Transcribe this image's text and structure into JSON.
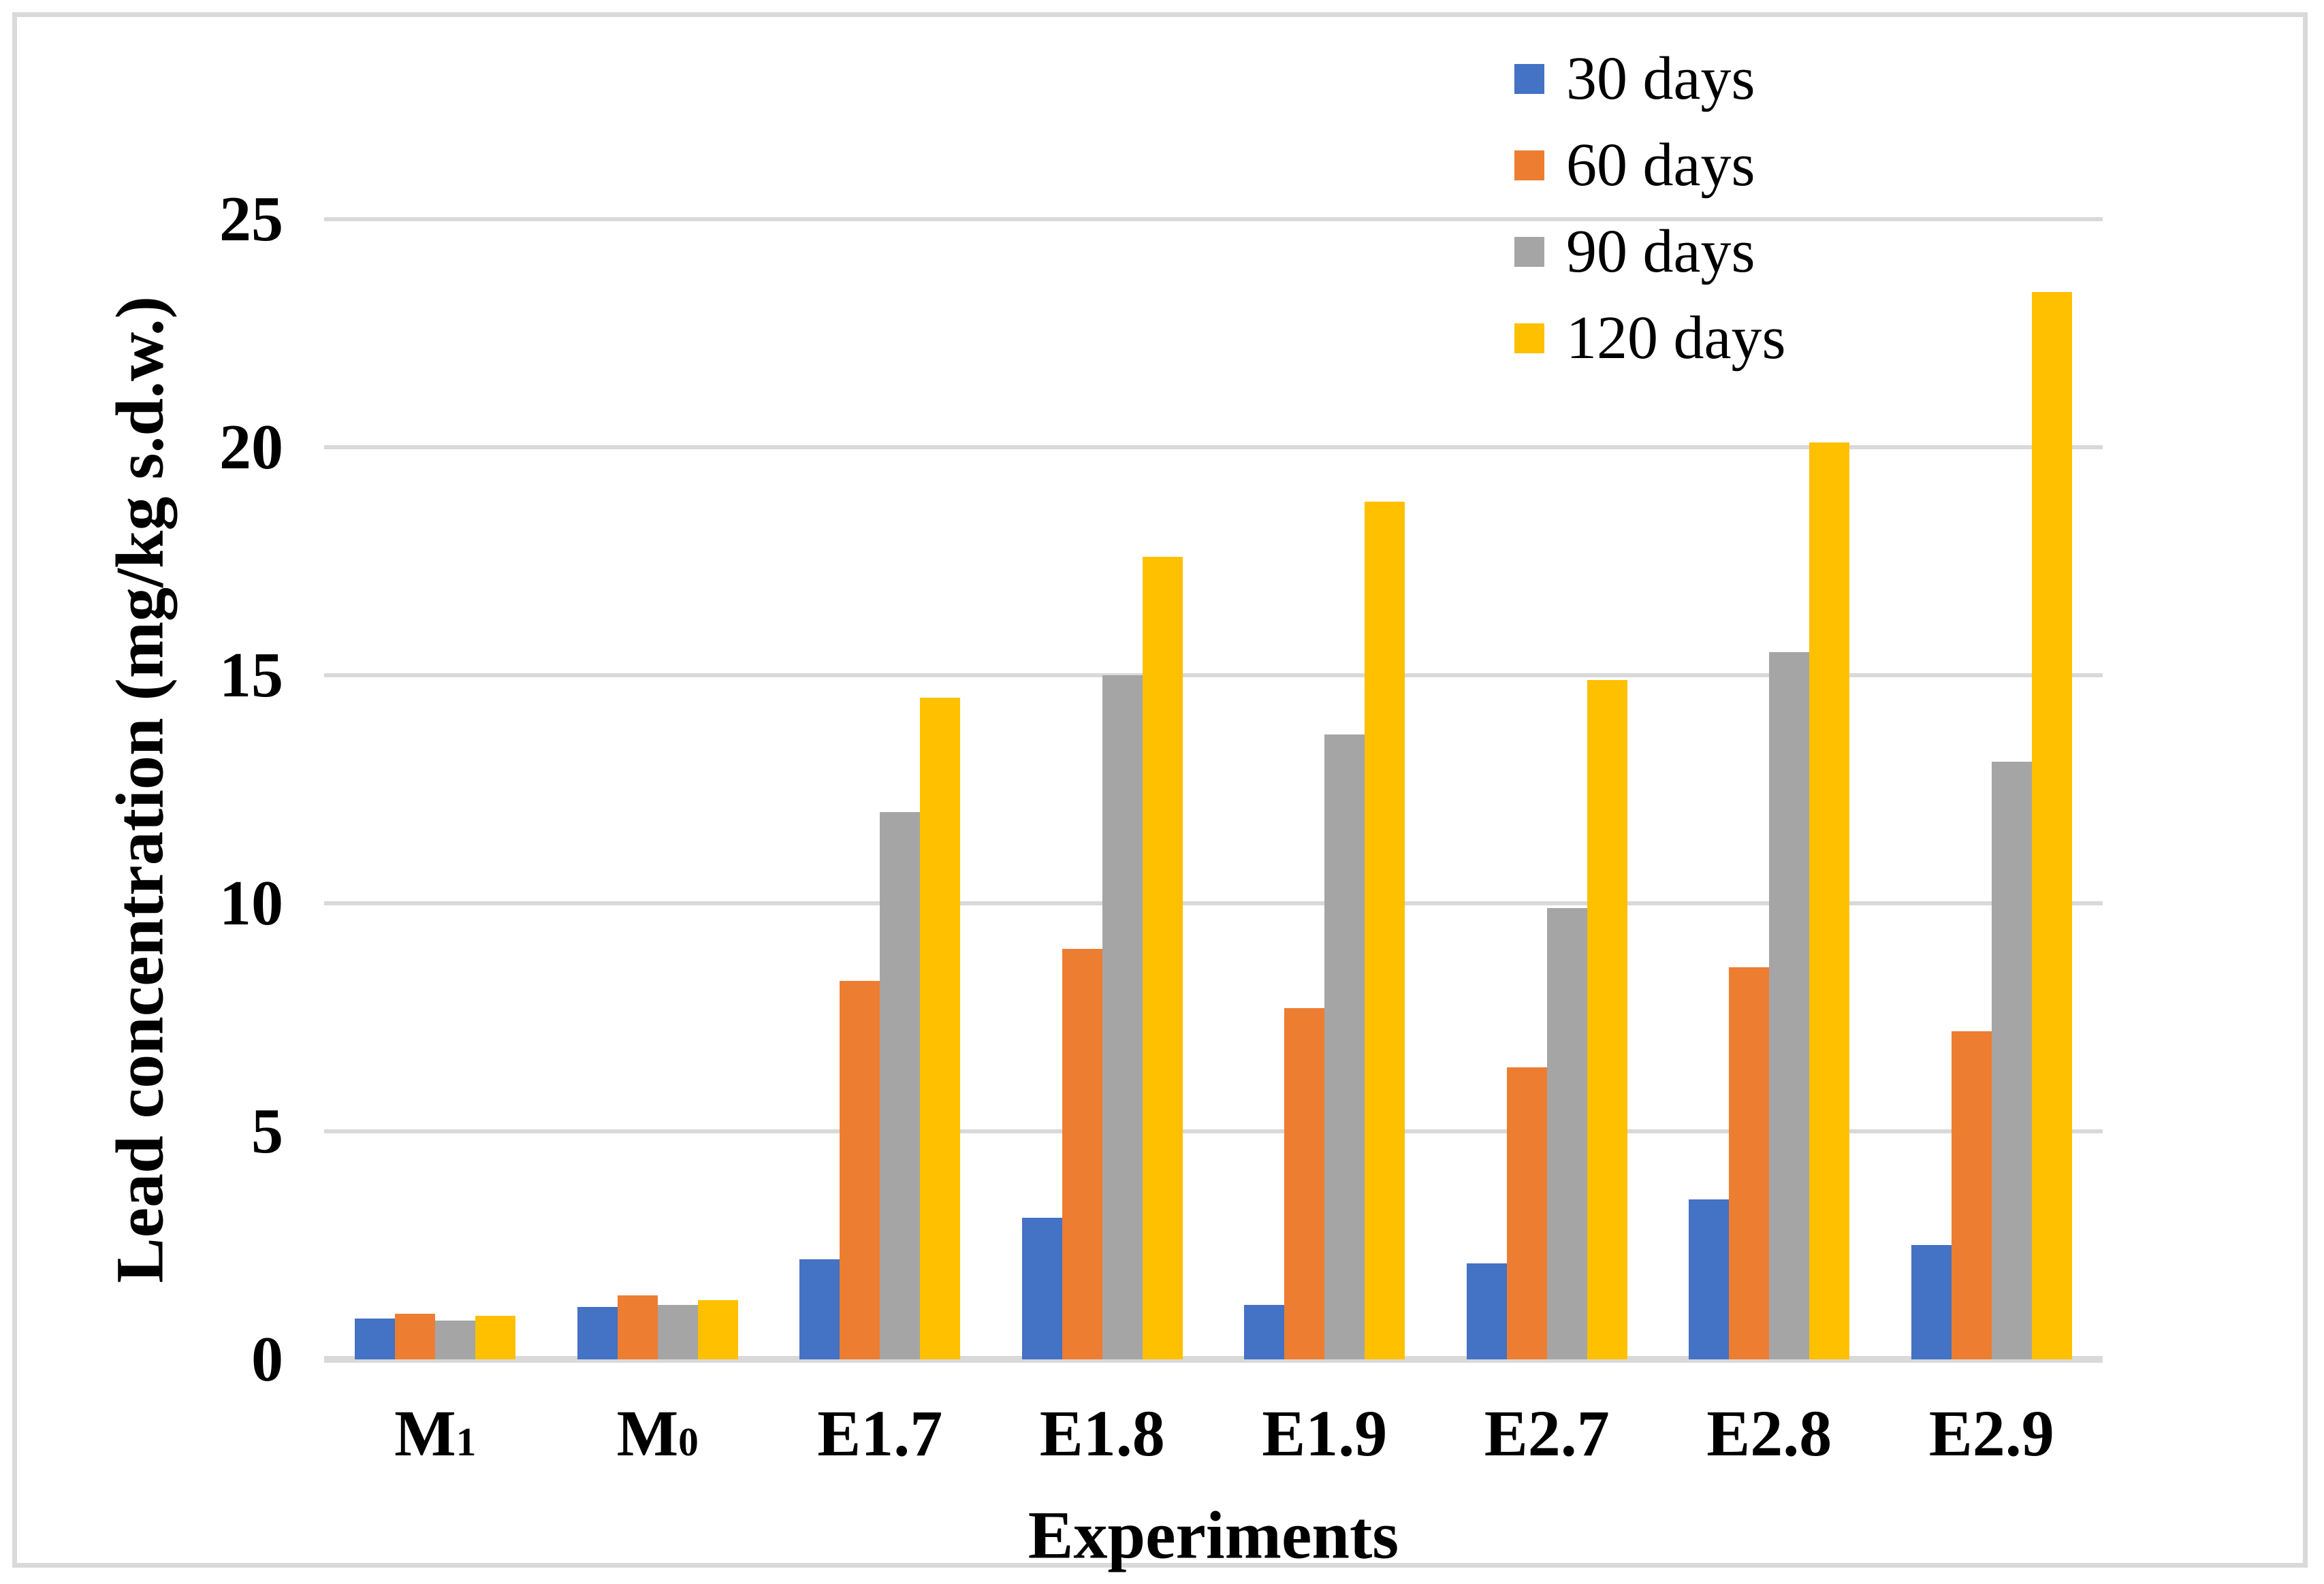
{
  "chart_data": {
    "type": "bar",
    "title": "",
    "xlabel": "Experiments",
    "ylabel": "Lead concentration (mg/kg s.d.w.)",
    "ylim": [
      0,
      25
    ],
    "yticks": [
      0,
      5,
      10,
      15,
      20,
      25
    ],
    "grid": true,
    "legend_position": "top-right-inside",
    "gridline_color": "#D9D9D9",
    "categories": [
      {
        "label": "M",
        "sub": "1"
      },
      {
        "label": "M",
        "sub": "0"
      },
      {
        "label": "E1.7"
      },
      {
        "label": "E1.8"
      },
      {
        "label": "E1.9"
      },
      {
        "label": "E2.7"
      },
      {
        "label": "E2.8"
      },
      {
        "label": "E2.9"
      }
    ],
    "series": [
      {
        "name": "30 days",
        "color": "#4472C4",
        "values": [
          0.9,
          1.15,
          2.2,
          3.1,
          1.2,
          2.1,
          3.5,
          2.5
        ]
      },
      {
        "name": "60 days",
        "color": "#ED7D31",
        "values": [
          1.0,
          1.4,
          8.3,
          9.0,
          7.7,
          6.4,
          8.6,
          7.2
        ]
      },
      {
        "name": "90 days",
        "color": "#A5A5A5",
        "values": [
          0.85,
          1.2,
          12.0,
          15.0,
          13.7,
          9.9,
          15.5,
          13.1
        ]
      },
      {
        "name": "120 days",
        "color": "#FFC000",
        "values": [
          0.95,
          1.3,
          14.5,
          17.6,
          18.8,
          14.9,
          20.1,
          23.4
        ]
      }
    ]
  }
}
